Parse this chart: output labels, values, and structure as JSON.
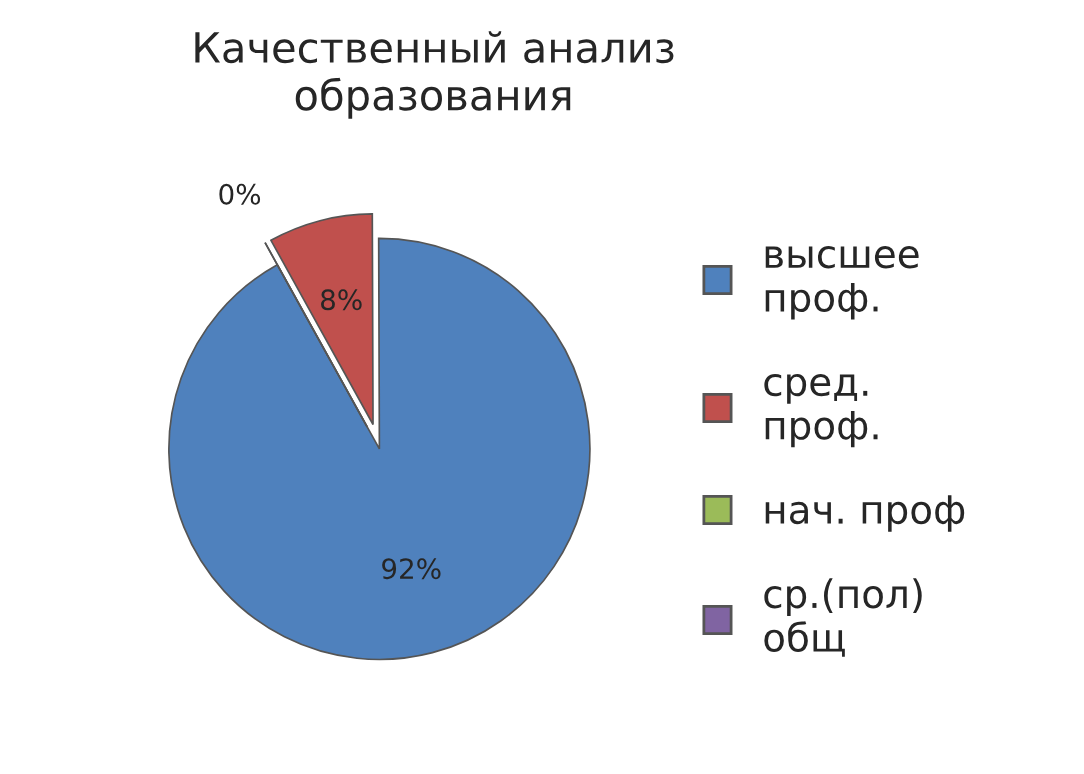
{
  "chart_data": {
    "type": "pie",
    "title": "Качественный анализ\nобразования",
    "categories": [
      "высшее\nпроф.",
      "сред.\nпроф.",
      "нач. проф",
      "ср.(пол)\nобщ"
    ],
    "values": [
      92,
      8,
      0,
      0
    ],
    "value_labels": [
      "92%",
      "8%",
      "0%",
      null
    ],
    "colors": [
      "#4f81bd",
      "#c0504d",
      "#9bbb59",
      "#8064a2"
    ],
    "legend": "right"
  }
}
